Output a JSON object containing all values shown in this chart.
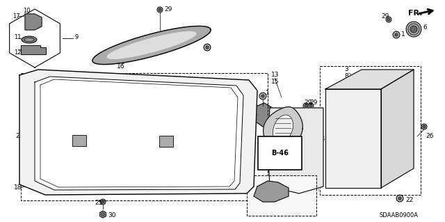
{
  "bg_color": "#ffffff",
  "diagram_code": "SDAAB0900A",
  "fig_width": 6.4,
  "fig_height": 3.19,
  "dpi": 100
}
